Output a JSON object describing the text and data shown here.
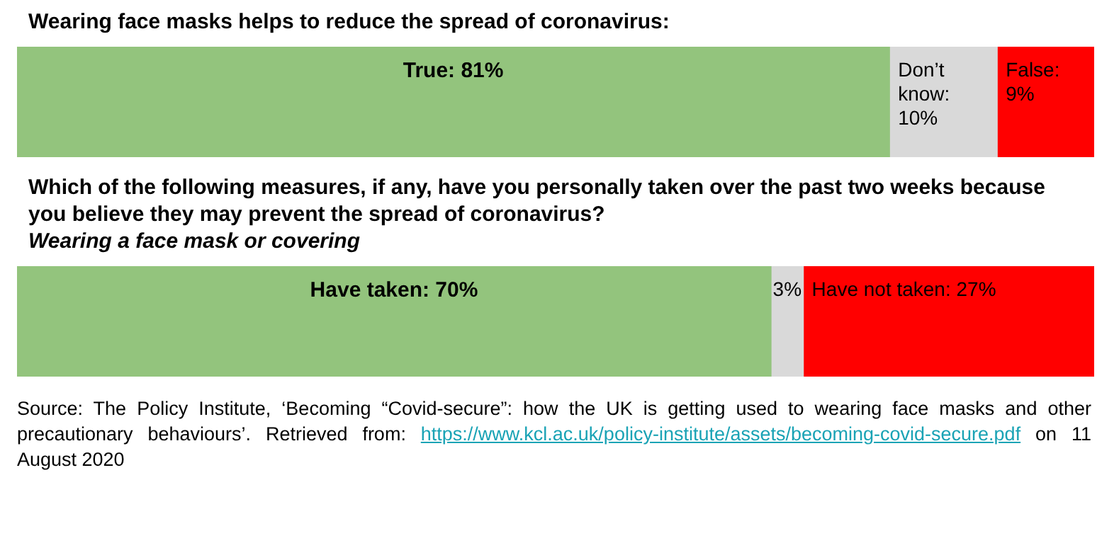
{
  "chart_data": [
    {
      "type": "bar",
      "title": "Wearing face masks helps to reduce the spread of coronavirus:",
      "orientation": "horizontal",
      "stacked": true,
      "categories": [
        null
      ],
      "xlim": [
        0,
        100
      ],
      "tick_labels": false,
      "series": [
        {
          "color": "#93c47d",
          "values": [
            81
          ],
          "value_labels": [
            "True: 81%"
          ]
        },
        {
          "color": "#d9d9d9",
          "values": [
            10
          ],
          "value_labels": [
            "Don’t know: 10%"
          ]
        },
        {
          "color": "#ff0000",
          "values": [
            9
          ],
          "value_labels": [
            "False: 9%"
          ]
        }
      ]
    },
    {
      "type": "bar",
      "title": "Which of the following measures, if any, have you personally taken over the past two weeks because you believe they may prevent the spread of coronavirus?",
      "subtitle": "Wearing a face mask or covering",
      "orientation": "horizontal",
      "stacked": true,
      "categories": [
        null
      ],
      "xlim": [
        0,
        100
      ],
      "tick_labels": false,
      "series": [
        {
          "color": "#93c47d",
          "values": [
            70
          ],
          "value_labels": [
            "Have taken: 70%"
          ]
        },
        {
          "color": "#d9d9d9",
          "values": [
            3
          ],
          "value_labels": [
            "3%"
          ]
        },
        {
          "color": "#ff0000",
          "values": [
            27
          ],
          "value_labels": [
            "Have not taken: 27%"
          ]
        }
      ],
      "annotations": [
        "Source: The Policy Institute, ‘Becoming “Covid-secure”: how the UK is getting used to wearing face masks and other precautionary behaviours’. Retrieved from: https://www.kcl.ac.uk/policy-institute/assets/becoming-covid-secure.pdf on 11 August 2020"
      ]
    }
  ]
}
